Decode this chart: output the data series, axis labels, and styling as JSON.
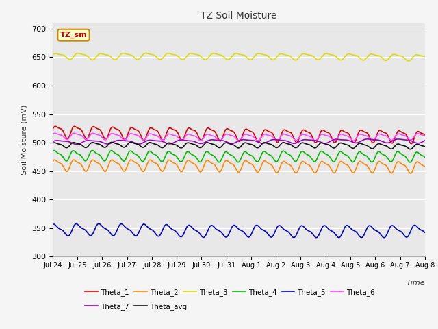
{
  "title": "TZ Soil Moisture",
  "ylabel": "Soil Moisture (mV)",
  "xlabel": "Time",
  "ylim": [
    300,
    710
  ],
  "yticks": [
    300,
    350,
    400,
    450,
    500,
    550,
    600,
    650,
    700
  ],
  "num_days": 15,
  "plot_bg": "#e8e8e8",
  "fig_bg": "#f5f5f5",
  "series": [
    {
      "name": "Theta_1",
      "color": "#dd0000",
      "base": 520,
      "amp": 10,
      "freq": 1.3,
      "trend": -0.5,
      "phase": 0.0
    },
    {
      "name": "Theta_2",
      "color": "#ff8800",
      "base": 461,
      "amp": 9,
      "freq": 1.3,
      "trend": -0.4,
      "phase": 0.3
    },
    {
      "name": "Theta_3",
      "color": "#dddd00",
      "base": 652,
      "amp": 5,
      "freq": 1.1,
      "trend": -0.4,
      "phase": 0.1
    },
    {
      "name": "Theta_4",
      "color": "#00bb00",
      "base": 478,
      "amp": 8,
      "freq": 1.3,
      "trend": -0.2,
      "phase": 0.5
    },
    {
      "name": "Theta_5",
      "color": "#0000cc",
      "base": 347,
      "amp": 9,
      "freq": 1.1,
      "trend": -0.15,
      "phase": 0.8
    },
    {
      "name": "Theta_6",
      "color": "#ff44ff",
      "base": 512,
      "amp": 5,
      "freq": 1.3,
      "trend": -0.15,
      "phase": 0.2
    },
    {
      "name": "Theta_7",
      "color": "#9900bb",
      "base": 501,
      "amp": 3,
      "freq": 0.8,
      "trend": 0.05,
      "phase": 0.0
    },
    {
      "name": "Theta_avg",
      "color": "#111111",
      "base": 496,
      "amp": 4,
      "freq": 1.3,
      "trend": -0.3,
      "phase": 0.4
    }
  ],
  "x_labels": [
    "Jul 24",
    "Jul 25",
    "Jul 26",
    "Jul 27",
    "Jul 28",
    "Jul 29",
    "Jul 30",
    "Jul 31",
    "Aug 1",
    "Aug 2",
    "Aug 3",
    "Aug 4",
    "Aug 5",
    "Aug 6",
    "Aug 7",
    "Aug 8"
  ],
  "annotation_label": "TZ_sm",
  "linewidth": 1.2
}
